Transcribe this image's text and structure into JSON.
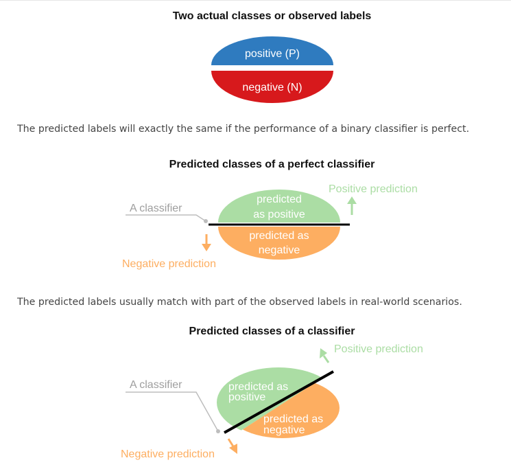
{
  "section1": {
    "title": "Two actual classes or observed labels",
    "positive_label": "positive (P)",
    "negative_label": "negative (N)"
  },
  "paragraph1": "The predicted labels will exactly the same if the performance of a binary classifier is perfect.",
  "section2": {
    "title": "Predicted classes of a perfect classifier",
    "classifier_label": "A classifier",
    "positive_prediction": "Positive prediction",
    "negative_prediction": "Negative prediction",
    "predicted_positive_line1": "predicted",
    "predicted_positive_line2": "as positive",
    "predicted_negative_line1": "predicted as",
    "predicted_negative_line2": "negative"
  },
  "paragraph2": "The predicted labels usually match with part of the observed labels in real-world scenarios.",
  "section3": {
    "title": "Predicted classes of a classifier",
    "classifier_label": "A classifier",
    "positive_prediction": "Positive prediction",
    "negative_prediction": "Negative prediction",
    "predicted_positive_line1": "predicted as",
    "predicted_positive_line2": "positive",
    "predicted_negative_line1": "predicted as",
    "predicted_negative_line2": "negative"
  },
  "colors": {
    "positive_blue": "#2f7bbf",
    "negative_red": "#d7191c",
    "predicted_green": "#abdda4",
    "predicted_orange": "#fdae61",
    "classifier_gray": "#bdbdbd"
  }
}
